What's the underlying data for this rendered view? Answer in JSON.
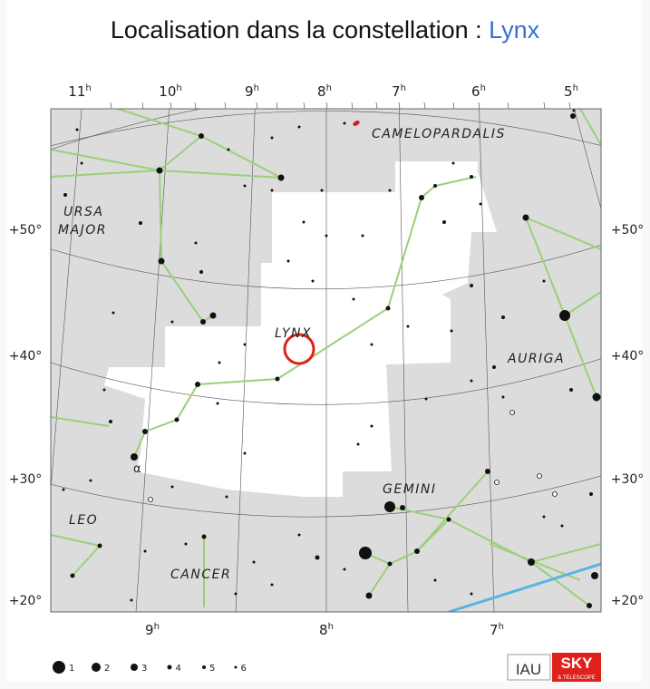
{
  "title": {
    "prefix": "Localisation dans la constellation : ",
    "link": "Lynx"
  },
  "ra_top": [
    "11h",
    "10h",
    "9h",
    "8h",
    "7h",
    "6h",
    "5h"
  ],
  "ra_bottom": [
    "9h",
    "8h",
    "7h"
  ],
  "dec_labels": [
    "+50°",
    "+40°",
    "+30°",
    "+20°"
  ],
  "constellations": [
    "CAMELOPARDALIS",
    "URSA",
    "MAJOR",
    "LYNX",
    "AURIGA",
    "GEMINI",
    "LEO",
    "CANCER"
  ],
  "star_labels": [
    "α"
  ],
  "magnitude_legend": [
    "1",
    "2",
    "3",
    "4",
    "5",
    "6"
  ],
  "logos": {
    "iau": "IAU",
    "sky": "SKY",
    "sky_sub": "& TELESCOPE"
  },
  "colors": {
    "sky_gray": "#dcdcdc",
    "constellation_line": "#9ad07a",
    "ecliptic": "#5ab4e0",
    "marker": "#e0201a",
    "link": "#3a6fd8"
  }
}
